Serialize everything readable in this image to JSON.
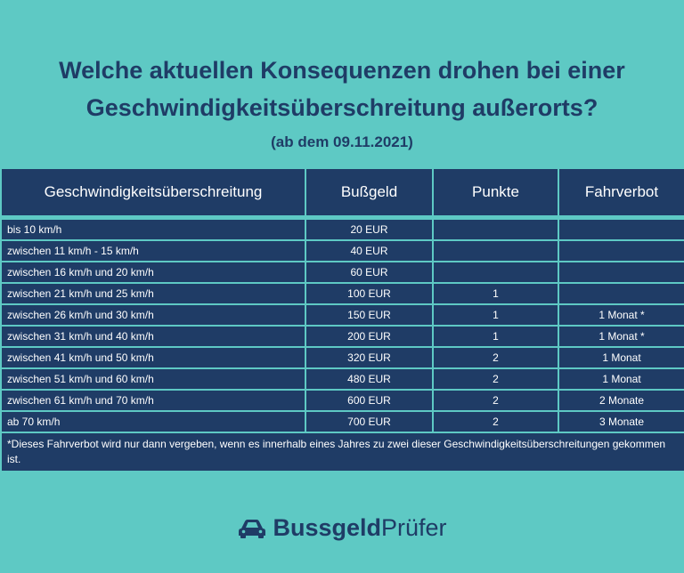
{
  "title": {
    "line1": "Welche aktuellen Konsequenzen drohen bei einer",
    "line2": "Geschwindigkeitsüberschreitung außerorts?",
    "subtitle": "(ab dem 09.11.2021)"
  },
  "table": {
    "headers": [
      "Geschwindigkeitsüberschreitung",
      "Bußgeld",
      "Punkte",
      "Fahrverbot"
    ],
    "rows": [
      [
        "bis 10 km/h",
        "20 EUR",
        "",
        ""
      ],
      [
        "zwischen 11 km/h - 15 km/h",
        "40 EUR",
        "",
        ""
      ],
      [
        "zwischen 16 km/h und 20 km/h",
        "60 EUR",
        "",
        ""
      ],
      [
        "zwischen 21 km/h und 25 km/h",
        "100 EUR",
        "1",
        ""
      ],
      [
        "zwischen 26 km/h und 30 km/h",
        "150 EUR",
        "1",
        "1 Monat *"
      ],
      [
        "zwischen 31 km/h und 40 km/h",
        "200 EUR",
        "1",
        "1 Monat *"
      ],
      [
        "zwischen 41 km/h und 50 km/h",
        "320 EUR",
        "2",
        "1 Monat"
      ],
      [
        "zwischen 51 km/h und 60 km/h",
        "480 EUR",
        "2",
        "1 Monat"
      ],
      [
        "zwischen 61 km/h und 70 km/h",
        "600 EUR",
        "2",
        "2 Monate"
      ],
      [
        "ab 70 km/h",
        "700 EUR",
        "2",
        "3 Monate"
      ]
    ],
    "footnote": "*Dieses Fahrverbot wird nur dann vergeben, wenn es innerhalb eines Jahres zu zwei dieser Geschwindigkeitsüberschreitungen gekommen ist."
  },
  "logo": {
    "part1": "Bussgeld",
    "part2": "Prüfer",
    "icon": "car-icon"
  },
  "colors": {
    "background": "#5ec9c4",
    "navy": "#1f3c66"
  }
}
